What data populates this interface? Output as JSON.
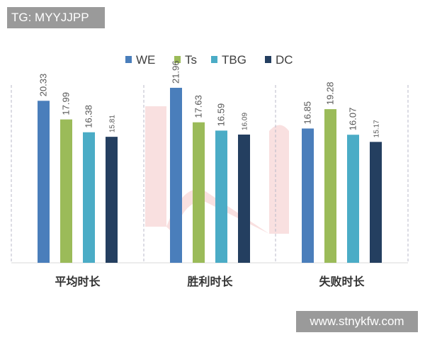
{
  "header_tag": "TG: MYYJJPP",
  "footer_watermark": "www.stnykfw.com",
  "colors": {
    "WE": "#4a7ebb",
    "Ts": "#9bbb59",
    "TBG": "#4bacc6",
    "DC": "#243f60",
    "background_mark": "#f4c6c6"
  },
  "chart_data": {
    "type": "bar",
    "title": "",
    "xlabel": "",
    "ylabel": "",
    "ylim": [
      0,
      24
    ],
    "grid": false,
    "legend_position": "top",
    "categories": [
      "平均时长",
      "胜利时长",
      "失败时长"
    ],
    "series": [
      {
        "name": "WE",
        "values": [
          20.33,
          21.96,
          16.85
        ]
      },
      {
        "name": "Ts",
        "values": [
          17.99,
          17.63,
          19.28
        ]
      },
      {
        "name": "TBG",
        "values": [
          16.38,
          16.59,
          16.07
        ]
      },
      {
        "name": "DC",
        "values": [
          15.81,
          16.09,
          15.17
        ]
      }
    ]
  }
}
